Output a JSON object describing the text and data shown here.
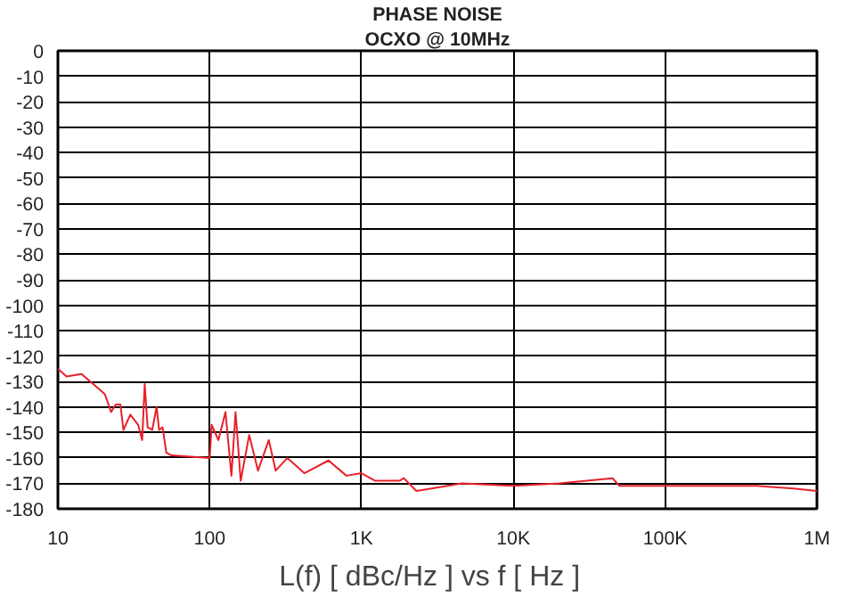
{
  "chart_data": {
    "type": "line",
    "title": "PHASE NOISE",
    "subtitle": "OCXO @ 10MHz",
    "xlabel": "L(f) [ dBc/Hz ]  vs  f [ Hz ]",
    "log": "x",
    "grid": true,
    "xlim": [
      10,
      1000000
    ],
    "xticks": [
      10,
      100,
      {
        "value": 1000,
        "label": "1K"
      },
      {
        "value": 10000,
        "label": "10K"
      },
      {
        "value": 100000,
        "label": "100K"
      },
      {
        "value": 1000000,
        "label": "1M"
      }
    ],
    "ylim": [
      -180,
      0
    ],
    "yticks": [
      0,
      -10,
      -20,
      -30,
      -40,
      -50,
      -60,
      -70,
      -80,
      -90,
      -100,
      -110,
      -120,
      -130,
      -140,
      -150,
      -160,
      -170,
      -180
    ],
    "series": [
      {
        "color": "#e8202a",
        "x": [
          10,
          11.4,
          14.3,
          17.1,
          20.4,
          22.4,
          24,
          25.8,
          27,
          30,
          33.8,
          35.9,
          37.3,
          39,
          41.8,
          44.7,
          46.4,
          48.9,
          51.8,
          56,
          100,
          103,
          114,
          127,
          139,
          148,
          160,
          182,
          208,
          245,
          272,
          325,
          420,
          606,
          795,
          1000,
          1230,
          1780,
          1900,
          2300,
          4600,
          10000,
          20000,
          45000,
          50000,
          100000,
          214000,
          400000,
          700000,
          1000000
        ],
        "values": [
          -125,
          -128,
          -127,
          -131,
          -135,
          -142,
          -139,
          -139,
          -149,
          -143,
          -147,
          -153,
          -131,
          -148,
          -149,
          -140,
          -149,
          -148,
          -158,
          -159,
          -160,
          -147,
          -153,
          -142,
          -167,
          -142,
          -169,
          -151,
          -165,
          -153,
          -165,
          -160,
          -166,
          -161,
          -167,
          -166,
          -169,
          -169,
          -168,
          -173,
          -170,
          -171,
          -170,
          -168,
          -171,
          -171,
          -171,
          -171,
          -172,
          -173
        ]
      }
    ]
  }
}
